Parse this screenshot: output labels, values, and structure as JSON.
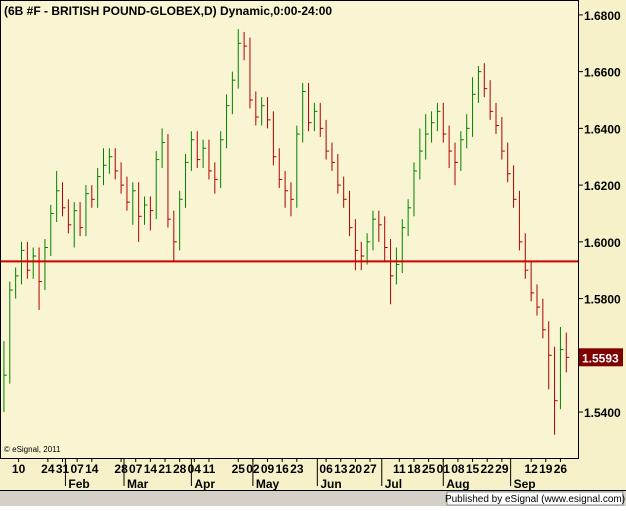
{
  "chart_data": {
    "type": "hlc",
    "title": "(6B #F - BRITISH POUND-GLOBEX,D) Dynamic,0:00-24:00",
    "copyright": "© eSignal, 2011",
    "footer": "Published by eSignal (www.esignal.com)",
    "up_color": "#008000",
    "down_color": "#b00000",
    "hline": {
      "value": 1.5931,
      "color": "#d00000"
    },
    "last_price_color": "#800000",
    "xlim": [
      -1,
      196
    ],
    "ylim": [
      1.5238,
      1.6849
    ],
    "yticks": [
      {
        "value": 1.54,
        "label": "1.5400"
      },
      {
        "value": 1.56,
        "label": "1.5600"
      },
      {
        "value": 1.58,
        "label": "1.5800"
      },
      {
        "value": 1.6,
        "label": "1.6000"
      },
      {
        "value": 1.62,
        "label": "1.6200"
      },
      {
        "value": 1.64,
        "label": "1.6400"
      },
      {
        "value": 1.66,
        "label": "1.6600"
      },
      {
        "value": 1.68,
        "label": "1.6800"
      }
    ],
    "xticks": [
      {
        "value": 5,
        "label": "10"
      },
      {
        "value": 15,
        "label": "24"
      },
      {
        "value": 20,
        "label": "31"
      },
      {
        "value": 25,
        "label": "07"
      },
      {
        "value": 30,
        "label": "14"
      },
      {
        "value": 40,
        "label": "28"
      },
      {
        "value": 45,
        "label": "07"
      },
      {
        "value": 50,
        "label": "14"
      },
      {
        "value": 55,
        "label": "21"
      },
      {
        "value": 60,
        "label": "28"
      },
      {
        "value": 65,
        "label": "04"
      },
      {
        "value": 70,
        "label": "11"
      },
      {
        "value": 80,
        "label": "25"
      },
      {
        "value": 85,
        "label": "02"
      },
      {
        "value": 90,
        "label": "09"
      },
      {
        "value": 95,
        "label": "16"
      },
      {
        "value": 100,
        "label": "23"
      },
      {
        "value": 110,
        "label": "06"
      },
      {
        "value": 115,
        "label": "13"
      },
      {
        "value": 120,
        "label": "20"
      },
      {
        "value": 125,
        "label": "27"
      },
      {
        "value": 135,
        "label": "11"
      },
      {
        "value": 140,
        "label": "18"
      },
      {
        "value": 145,
        "label": "25"
      },
      {
        "value": 150,
        "label": "01"
      },
      {
        "value": 155,
        "label": "08"
      },
      {
        "value": 160,
        "label": "15"
      },
      {
        "value": 165,
        "label": "22"
      },
      {
        "value": 170,
        "label": "29"
      },
      {
        "value": 180,
        "label": "12"
      },
      {
        "value": 185,
        "label": "19"
      },
      {
        "value": 190,
        "label": "26"
      }
    ],
    "month_ticks": [
      {
        "value": 21,
        "label": "Feb"
      },
      {
        "value": 41,
        "label": "Mar"
      },
      {
        "value": 64,
        "label": "Apr"
      },
      {
        "value": 85,
        "label": "May"
      },
      {
        "value": 107,
        "label": "Jun"
      },
      {
        "value": 129,
        "label": "Jul"
      },
      {
        "value": 150,
        "label": "Aug"
      },
      {
        "value": 173,
        "label": "Sep"
      }
    ],
    "x": [
      0,
      2,
      4,
      6,
      8,
      10,
      12,
      14,
      16,
      18,
      20,
      22,
      24,
      26,
      28,
      30,
      32,
      34,
      36,
      38,
      40,
      42,
      44,
      46,
      48,
      50,
      52,
      54,
      56,
      58,
      60,
      62,
      64,
      66,
      68,
      70,
      72,
      74,
      76,
      78,
      80,
      82,
      84,
      86,
      88,
      90,
      92,
      94,
      96,
      98,
      100,
      102,
      104,
      106,
      108,
      110,
      112,
      114,
      116,
      118,
      120,
      122,
      124,
      126,
      128,
      130,
      132,
      134,
      136,
      138,
      140,
      142,
      144,
      146,
      148,
      150,
      152,
      154,
      156,
      158,
      160,
      162,
      164,
      166,
      168,
      170,
      172,
      174,
      176,
      178,
      180,
      182,
      184,
      186,
      188,
      190,
      192
    ],
    "high": [
      1.565,
      1.586,
      1.591,
      1.6,
      1.6,
      1.598,
      1.598,
      1.601,
      1.613,
      1.625,
      1.621,
      1.615,
      1.614,
      1.614,
      1.62,
      1.62,
      1.626,
      1.633,
      1.633,
      1.633,
      1.628,
      1.623,
      1.621,
      1.621,
      1.616,
      1.616,
      1.632,
      1.64,
      1.638,
      1.611,
      1.618,
      1.631,
      1.639,
      1.639,
      1.636,
      1.636,
      1.628,
      1.639,
      1.652,
      1.66,
      1.675,
      1.674,
      1.672,
      1.653,
      1.651,
      1.651,
      1.646,
      1.633,
      1.625,
      1.621,
      1.641,
      1.656,
      1.656,
      1.649,
      1.649,
      1.643,
      1.635,
      1.631,
      1.623,
      1.618,
      1.608,
      1.6,
      1.603,
      1.611,
      1.611,
      1.609,
      1.601,
      1.598,
      1.608,
      1.615,
      1.628,
      1.64,
      1.645,
      1.646,
      1.649,
      1.649,
      1.641,
      1.635,
      1.639,
      1.645,
      1.658,
      1.662,
      1.663,
      1.657,
      1.649,
      1.644,
      1.635,
      1.627,
      1.618,
      1.603,
      1.593,
      1.585,
      1.58,
      1.572,
      1.563,
      1.57,
      1.568
    ],
    "low": [
      1.54,
      1.55,
      1.58,
      1.585,
      1.587,
      1.587,
      1.576,
      1.583,
      1.595,
      1.607,
      1.609,
      1.603,
      1.598,
      1.602,
      1.602,
      1.612,
      1.612,
      1.62,
      1.624,
      1.622,
      1.617,
      1.611,
      1.606,
      1.6,
      1.606,
      1.604,
      1.608,
      1.626,
      1.605,
      1.593,
      1.597,
      1.612,
      1.625,
      1.626,
      1.626,
      1.622,
      1.617,
      1.619,
      1.633,
      1.645,
      1.654,
      1.664,
      1.647,
      1.641,
      1.641,
      1.64,
      1.627,
      1.619,
      1.612,
      1.609,
      1.612,
      1.635,
      1.639,
      1.639,
      1.637,
      1.629,
      1.625,
      1.617,
      1.612,
      1.602,
      1.59,
      1.59,
      1.592,
      1.597,
      1.6,
      1.593,
      1.578,
      1.585,
      1.589,
      1.602,
      1.609,
      1.622,
      1.629,
      1.635,
      1.639,
      1.635,
      1.626,
      1.62,
      1.625,
      1.633,
      1.637,
      1.649,
      1.651,
      1.643,
      1.638,
      1.629,
      1.621,
      1.612,
      1.597,
      1.587,
      1.579,
      1.574,
      1.566,
      1.548,
      1.532,
      1.541,
      1.554
    ],
    "close": [
      1.553,
      1.583,
      1.588,
      1.597,
      1.59,
      1.595,
      1.586,
      1.598,
      1.61,
      1.618,
      1.612,
      1.606,
      1.611,
      1.605,
      1.617,
      1.615,
      1.623,
      1.627,
      1.63,
      1.625,
      1.62,
      1.614,
      1.618,
      1.609,
      1.613,
      1.611,
      1.629,
      1.635,
      1.608,
      1.6,
      1.615,
      1.628,
      1.636,
      1.629,
      1.633,
      1.625,
      1.622,
      1.636,
      1.648,
      1.657,
      1.67,
      1.669,
      1.65,
      1.644,
      1.648,
      1.643,
      1.63,
      1.622,
      1.618,
      1.615,
      1.638,
      1.653,
      1.642,
      1.646,
      1.64,
      1.632,
      1.628,
      1.62,
      1.615,
      1.605,
      1.597,
      1.595,
      1.6,
      1.608,
      1.606,
      1.598,
      1.588,
      1.592,
      1.605,
      1.612,
      1.625,
      1.632,
      1.638,
      1.642,
      1.646,
      1.638,
      1.632,
      1.628,
      1.636,
      1.64,
      1.652,
      1.66,
      1.654,
      1.646,
      1.641,
      1.632,
      1.624,
      1.615,
      1.6,
      1.59,
      1.582,
      1.577,
      1.569,
      1.56,
      1.544,
      1.562,
      1.5593
    ]
  }
}
